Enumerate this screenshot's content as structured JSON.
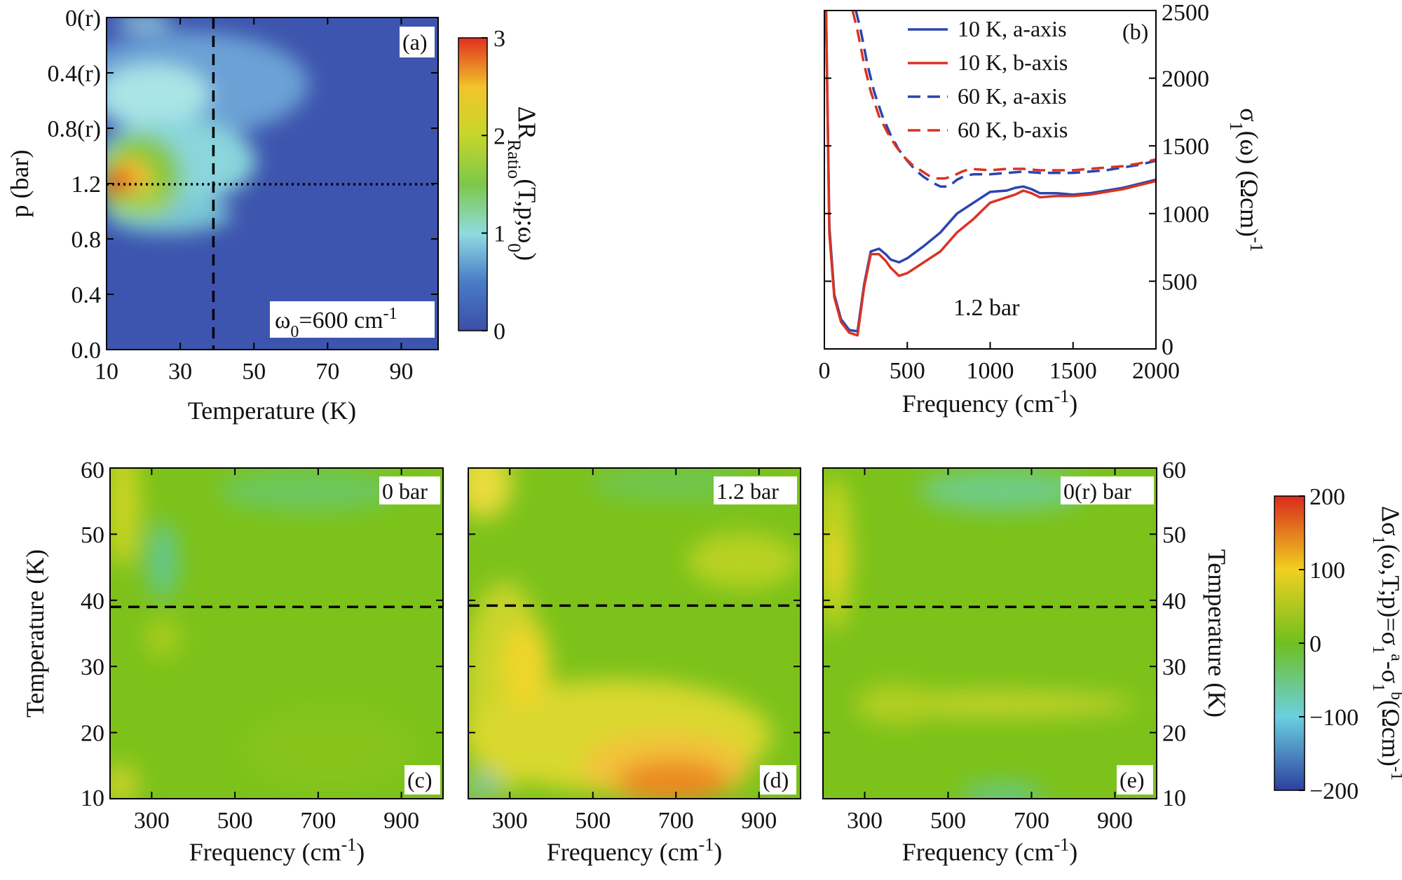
{
  "chart_data": [
    {
      "id": "a",
      "type": "heatmap",
      "panel_label": "(a)",
      "xlabel": "Temperature (K)",
      "ylabel": "p (bar)",
      "xlim": [
        10,
        100
      ],
      "x_ticks": [
        10,
        30,
        50,
        70,
        90
      ],
      "y_tick_labels": [
        "0.0",
        "0.4",
        "0.8",
        "1.2",
        "0.8(r)",
        "0.4(r)",
        "0(r)"
      ],
      "colorbar": {
        "label": "ΔR",
        "label_sub": "Ratio",
        "label_rest": "(T,p;ω",
        "label_sub2": "0",
        "label_end": ")",
        "range": [
          0,
          3
        ],
        "ticks": [
          "0",
          "1",
          "2",
          "3"
        ]
      },
      "annotation": {
        "pre": "ω",
        "sub": "0",
        "mid": "=600 cm",
        "sup": "-1"
      },
      "vline_x": 39,
      "hline_y_label": "1.2",
      "grid": false
    },
    {
      "id": "b",
      "type": "line",
      "panel_label": "(b)",
      "xlabel": {
        "text": "Frequency (cm",
        "sup": "-1",
        "end": ")"
      },
      "ylabel": {
        "pre": "σ",
        "sub": "1",
        "mid": "(ω) (Ωcm)",
        "sup": "-1"
      },
      "xlim": [
        0,
        2000
      ],
      "ylim": [
        0,
        2500
      ],
      "x_ticks": [
        0,
        500,
        1000,
        1500,
        2000
      ],
      "y_ticks": [
        0,
        500,
        1000,
        1500,
        2000,
        2500
      ],
      "annotation": "1.2 bar",
      "legend_position": "top-right",
      "series": [
        {
          "name": "10 K, a-axis",
          "color": "#2b44b0",
          "dash": "solid",
          "x": [
            10,
            30,
            60,
            100,
            150,
            200,
            240,
            280,
            330,
            370,
            400,
            450,
            500,
            600,
            700,
            800,
            900,
            1000,
            1100,
            1150,
            1200,
            1250,
            1300,
            1400,
            1500,
            1600,
            1700,
            1800,
            1900,
            2000
          ],
          "y": [
            2500,
            900,
            400,
            220,
            140,
            130,
            480,
            720,
            740,
            700,
            660,
            640,
            670,
            760,
            860,
            1000,
            1080,
            1160,
            1170,
            1190,
            1200,
            1180,
            1150,
            1150,
            1140,
            1150,
            1170,
            1190,
            1220,
            1250
          ]
        },
        {
          "name": "10 K, b-axis",
          "color": "#d93323",
          "dash": "solid",
          "x": [
            10,
            30,
            60,
            100,
            150,
            200,
            240,
            280,
            330,
            370,
            400,
            450,
            500,
            600,
            700,
            800,
            900,
            1000,
            1100,
            1150,
            1200,
            1250,
            1300,
            1400,
            1500,
            1600,
            1700,
            1800,
            1900,
            2000
          ],
          "y": [
            2500,
            850,
            380,
            200,
            120,
            100,
            460,
            700,
            700,
            650,
            600,
            540,
            560,
            640,
            720,
            860,
            960,
            1080,
            1120,
            1140,
            1170,
            1150,
            1120,
            1130,
            1130,
            1140,
            1160,
            1180,
            1210,
            1240
          ]
        },
        {
          "name": "60 K, a-axis",
          "color": "#2b44b0",
          "dash": "dashed",
          "x": [
            190,
            220,
            260,
            300,
            350,
            400,
            450,
            500,
            550,
            600,
            650,
            700,
            750,
            800,
            850,
            900,
            1000,
            1100,
            1200,
            1300,
            1400,
            1500,
            1600,
            1700,
            1800,
            1900,
            2000
          ],
          "y": [
            2500,
            2350,
            2100,
            1900,
            1720,
            1580,
            1470,
            1390,
            1320,
            1270,
            1230,
            1200,
            1200,
            1250,
            1280,
            1290,
            1290,
            1300,
            1310,
            1300,
            1300,
            1300,
            1310,
            1320,
            1340,
            1360,
            1390
          ]
        },
        {
          "name": "60 K, b-axis",
          "color": "#d93323",
          "dash": "dashed",
          "x": [
            170,
            200,
            240,
            280,
            330,
            380,
            430,
            480,
            530,
            580,
            630,
            680,
            730,
            780,
            830,
            880,
            1000,
            1100,
            1200,
            1300,
            1400,
            1500,
            1600,
            1700,
            1800,
            1900,
            2000
          ],
          "y": [
            2500,
            2350,
            2100,
            1900,
            1720,
            1600,
            1500,
            1420,
            1360,
            1320,
            1280,
            1260,
            1260,
            1280,
            1310,
            1330,
            1320,
            1330,
            1330,
            1320,
            1320,
            1320,
            1330,
            1340,
            1350,
            1370,
            1400
          ]
        }
      ]
    },
    {
      "id": "c",
      "type": "heatmap",
      "panel_label": "(c)",
      "condition_label": "0 bar",
      "xlabel": {
        "text": "Frequency (cm",
        "sup": "-1",
        "end": ")"
      },
      "ylabel": "Temperature (K)",
      "xlim": [
        200,
        1000
      ],
      "ylim": [
        10,
        60
      ],
      "x_ticks": [
        300,
        500,
        700,
        900
      ],
      "y_ticks": [
        10,
        20,
        30,
        40,
        50,
        60
      ],
      "dashed_line_T": 39
    },
    {
      "id": "d",
      "type": "heatmap",
      "panel_label": "(d)",
      "condition_label": "1.2 bar",
      "xlabel": {
        "text": "Frequency (cm",
        "sup": "-1",
        "end": ")"
      },
      "xlim": [
        200,
        1000
      ],
      "ylim": [
        10,
        60
      ],
      "x_ticks": [
        300,
        500,
        700,
        900
      ],
      "dashed_line_T": 39.2
    },
    {
      "id": "e",
      "type": "heatmap",
      "panel_label": "(e)",
      "condition_label": "0(r) bar",
      "xlabel": {
        "text": "Frequency (cm",
        "sup": "-1",
        "end": ")"
      },
      "ylabel_right": "Temperature (K)",
      "xlim": [
        200,
        1000
      ],
      "ylim": [
        10,
        60
      ],
      "x_ticks": [
        300,
        500,
        700,
        900
      ],
      "y_ticks": [
        10,
        20,
        30,
        40,
        50,
        60
      ],
      "dashed_line_T": 39,
      "colorbar": {
        "label": "Δσ",
        "label_parts": [
          {
            "t": "Δσ"
          },
          {
            "t": "1",
            "sub": true
          },
          {
            "t": "(ω,T;p)=σ"
          },
          {
            "t": "1",
            "sub": true
          },
          {
            "t": "a",
            "sup": true
          },
          {
            "t": "-σ"
          },
          {
            "t": "1",
            "sub": true
          },
          {
            "t": "b",
            "sup": true
          },
          {
            "t": "(Ωcm)"
          },
          {
            "t": "-1",
            "sup": true
          }
        ],
        "range": [
          -200,
          200
        ],
        "ticks": [
          "−200",
          "−100",
          "0",
          "100",
          "200"
        ]
      }
    }
  ]
}
